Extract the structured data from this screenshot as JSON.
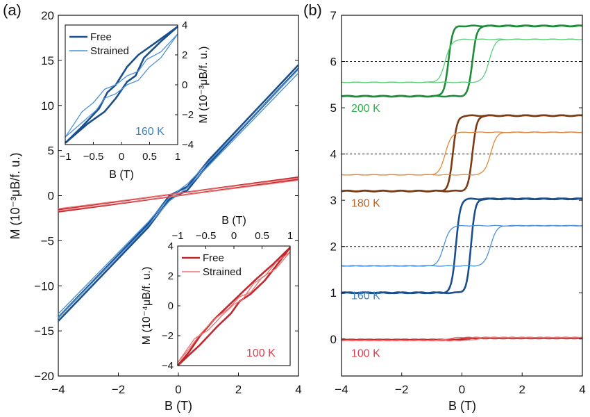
{
  "figure": {
    "panel_labels": {
      "a": "(a)",
      "b": "(b)"
    }
  },
  "colors": {
    "blue_free": "#1b4f8c",
    "blue_strained": "#4a90d9",
    "red_free": "#c0282d",
    "red_strained": "#f07070",
    "green_free": "#1e8c3a",
    "green_strained": "#5ad07a",
    "brown_free": "#7a3b15",
    "brown_strained": "#e0883a",
    "label_200": "#2bb04a",
    "label_180": "#b8652a",
    "label_160": "#3b82c8",
    "label_100": "#d94050"
  },
  "chart_data": [
    {
      "id": "main_a",
      "type": "line",
      "xlabel": "B (T)",
      "ylabel": "M (10⁻³μB/f. u.)",
      "xlim": [
        -4,
        4
      ],
      "ylim": [
        -20,
        20
      ],
      "xticks": [
        -4,
        -2,
        0,
        2,
        4
      ],
      "yticks": [
        -20,
        -15,
        -10,
        -5,
        0,
        5,
        10,
        15,
        20
      ],
      "series": [
        {
          "name": "Free 160 K",
          "x": [
            -4,
            -1,
            -0.3,
            0.3,
            1,
            4
          ],
          "y": [
            -13.9,
            -3.5,
            -0.4,
            0.6,
            3.5,
            14.1
          ]
        },
        {
          "name": "Strained 160 K",
          "x": [
            -4,
            -1,
            -0.3,
            0.3,
            1,
            4
          ],
          "y": [
            -13.5,
            -3.3,
            -0.6,
            0.9,
            3.3,
            13.6
          ]
        },
        {
          "name": "Free 100 K",
          "x": [
            -4,
            4
          ],
          "y": [
            -1.8,
            1.8
          ]
        },
        {
          "name": "Strained 100 K",
          "x": [
            -4,
            4
          ],
          "y": [
            -1.7,
            1.7
          ]
        }
      ]
    },
    {
      "id": "inset_top",
      "type": "line",
      "xlabel": "B (T)",
      "ylabel": "M (10⁻³μB/f. u.)",
      "xlim": [
        -1,
        1
      ],
      "ylim": [
        -4,
        4
      ],
      "xticks": [
        -1,
        -0.5,
        0,
        0.5,
        1
      ],
      "xtick_labels": [
        "-1",
        "-0.5",
        "0",
        "0.5",
        "1"
      ],
      "yticks": [
        -4,
        -2,
        0,
        2,
        4
      ],
      "temperature": "160 K",
      "legend": [
        "Free",
        "Strained"
      ],
      "series": [
        {
          "name": "Free up",
          "x": [
            -1,
            -0.6,
            -0.3,
            -0.1,
            0.1,
            0.25,
            0.4,
            0.7,
            1
          ],
          "y": [
            -3.9,
            -2.6,
            -1.8,
            -0.9,
            0.2,
            0.6,
            1.8,
            2.9,
            3.9
          ]
        },
        {
          "name": "Free down",
          "x": [
            1,
            0.6,
            0.3,
            0.1,
            -0.1,
            -0.25,
            -0.4,
            -0.7,
            -1
          ],
          "y": [
            3.9,
            2.8,
            2.0,
            1.2,
            0.0,
            -0.5,
            -1.6,
            -2.8,
            -3.9
          ]
        },
        {
          "name": "Strained up",
          "x": [
            -1,
            -0.6,
            -0.45,
            -0.3,
            -0.1,
            0.1,
            0.3,
            0.5,
            0.7,
            1
          ],
          "y": [
            -3.5,
            -2.2,
            -1.7,
            -0.9,
            -0.6,
            0.0,
            0.3,
            1.2,
            1.8,
            3.4
          ]
        },
        {
          "name": "Strained down",
          "x": [
            1,
            0.7,
            0.45,
            0.3,
            0.1,
            -0.1,
            -0.3,
            -0.5,
            -0.7,
            -1
          ],
          "y": [
            3.4,
            2.2,
            1.7,
            0.9,
            0.6,
            0.0,
            -0.3,
            -1.2,
            -1.8,
            -3.5
          ]
        }
      ]
    },
    {
      "id": "inset_bottom",
      "type": "line",
      "xlabel": "B (T)",
      "ylabel": "M (10⁻⁴μB/f. u.)",
      "xlim": [
        -1,
        1
      ],
      "ylim": [
        -4,
        4
      ],
      "xticks": [
        -1,
        -0.5,
        0,
        0.5,
        1
      ],
      "xtick_labels": [
        "-1",
        "-0.5",
        "0",
        "0.5",
        "1"
      ],
      "yticks": [
        -4,
        -2,
        0,
        2,
        4
      ],
      "temperature": "100 K",
      "legend": [
        "Free",
        "Strained"
      ],
      "series": [
        {
          "name": "Free up",
          "x": [
            -1,
            -0.6,
            -0.3,
            -0.05,
            0.1,
            0.3,
            0.55,
            0.8,
            1
          ],
          "y": [
            -4.0,
            -2.6,
            -1.4,
            -0.5,
            0.3,
            0.8,
            1.7,
            2.9,
            3.9
          ]
        },
        {
          "name": "Free down",
          "x": [
            1,
            0.7,
            0.4,
            0.15,
            -0.1,
            -0.35,
            -0.6,
            -0.8,
            -1
          ],
          "y": [
            3.9,
            2.8,
            1.8,
            0.9,
            0.0,
            -0.9,
            -2.0,
            -3.1,
            -4.0
          ]
        },
        {
          "name": "Strained up",
          "x": [
            -1,
            -0.7,
            -0.45,
            -0.2,
            0.0,
            0.15,
            0.35,
            0.55,
            0.75,
            1
          ],
          "y": [
            -3.8,
            -2.2,
            -1.6,
            -0.6,
            0.1,
            0.4,
            1.5,
            2.0,
            2.9,
            3.6
          ]
        },
        {
          "name": "Strained down",
          "x": [
            1,
            0.75,
            0.5,
            0.3,
            0.1,
            -0.1,
            -0.35,
            -0.6,
            -0.8,
            -1
          ],
          "y": [
            3.6,
            2.5,
            1.9,
            0.9,
            0.6,
            -0.2,
            -0.9,
            -1.9,
            -2.9,
            -3.8
          ]
        }
      ]
    },
    {
      "id": "main_b",
      "type": "line",
      "xlabel": "B (T)",
      "ylabel": "",
      "xlim": [
        -4,
        4
      ],
      "ylim": [
        -0.8,
        7
      ],
      "xticks": [
        -4,
        -2,
        0,
        2,
        4
      ],
      "yticks": [
        0,
        1,
        2,
        3,
        4,
        5,
        6,
        7
      ],
      "dashed_reference_lines": [
        2,
        4,
        6
      ],
      "temperature_labels": [
        {
          "text": "200 K",
          "y": 5.0
        },
        {
          "text": "180 K",
          "y": 2.95
        },
        {
          "text": "160 K",
          "y": 0.95
        },
        {
          "text": "100 K",
          "y": -0.3
        }
      ],
      "series": [
        {
          "name": "200 K Free",
          "low": 5.25,
          "high": 6.77,
          "switch_up": 0.35,
          "switch_down": -0.45
        },
        {
          "name": "200 K Strained",
          "low": 5.55,
          "high": 6.48,
          "switch_up": 0.9,
          "switch_down": -0.55
        },
        {
          "name": "180 K Free",
          "low": 3.2,
          "high": 4.83,
          "switch_up": 0.35,
          "switch_down": -0.3
        },
        {
          "name": "180 K Strained",
          "low": 3.55,
          "high": 4.47,
          "switch_up": 0.95,
          "switch_down": -0.55
        },
        {
          "name": "160 K Free",
          "low": 1.0,
          "high": 3.03,
          "switch_up": 0.3,
          "switch_down": -0.2
        },
        {
          "name": "160 K Strained",
          "low": 1.58,
          "high": 2.45,
          "switch_up": 0.95,
          "switch_down": -0.6
        },
        {
          "name": "100 K Free",
          "low": -0.02,
          "high": 0.02,
          "switch_up": 0.1,
          "switch_down": -0.1
        },
        {
          "name": "100 K Strained",
          "low": -0.03,
          "high": 0.03,
          "switch_up": 0.5,
          "switch_down": -0.5
        }
      ]
    }
  ]
}
